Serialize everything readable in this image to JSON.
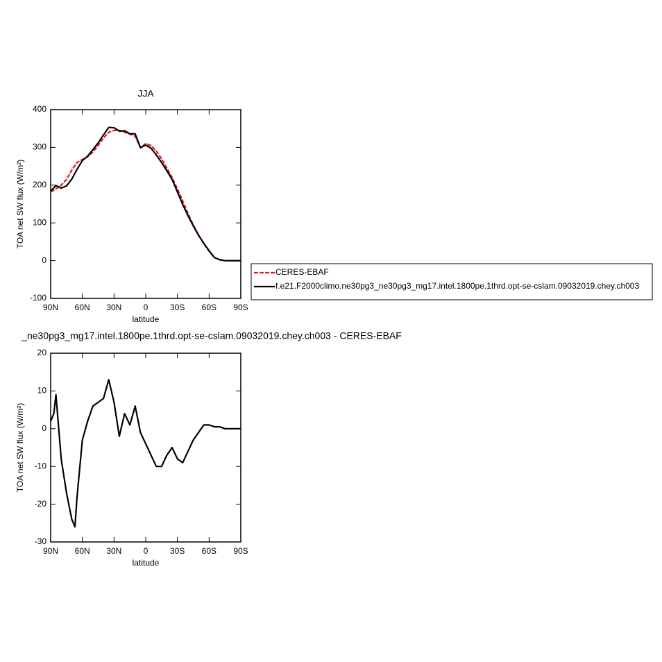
{
  "chart_data": [
    {
      "type": "line",
      "title": "JJA",
      "x_label": "latitude",
      "y_label": "TOA net SW flux (W/m²)",
      "x": [
        90,
        85,
        80,
        75,
        70,
        65,
        60,
        55,
        50,
        45,
        40,
        35,
        30,
        25,
        20,
        15,
        10,
        5,
        0,
        -5,
        -10,
        -15,
        -20,
        -25,
        -30,
        -35,
        -40,
        -45,
        -50,
        -55,
        -60,
        -65,
        -70,
        -75,
        -80,
        -85,
        -90
      ],
      "series": [
        {
          "name": "CERES-EBAF",
          "color": "#e31a1c",
          "dashed": true,
          "values": [
            182,
            190,
            200,
            215,
            240,
            260,
            268,
            275,
            288,
            305,
            325,
            340,
            345,
            345,
            340,
            335,
            330,
            300,
            310,
            305,
            290,
            270,
            245,
            220,
            190,
            158,
            125,
            95,
            68,
            45,
            25,
            8,
            2,
            0,
            0,
            0,
            0
          ]
        },
        {
          "name": "f.e21.F2000climo.ne30pg3_ne30pg3_mg17.intel.1800pe.1thrd.opt-se-cslam.09032019.chey.ch003",
          "color": "#000000",
          "dashed": false,
          "values": [
            184,
            199,
            192,
            198,
            216,
            242,
            265,
            277,
            294,
            312,
            333,
            353,
            352,
            343,
            344,
            336,
            336,
            299,
            306,
            298,
            280,
            260,
            238,
            215,
            182,
            149,
            119,
            92,
            67,
            46,
            26,
            8.5,
            2.5,
            0,
            0,
            0,
            0
          ]
        }
      ],
      "xlim": [
        90,
        -90
      ],
      "xticks": [
        {
          "value": 90,
          "label": "90N"
        },
        {
          "value": 60,
          "label": "60N"
        },
        {
          "value": 30,
          "label": "30N"
        },
        0,
        {
          "value": -30,
          "label": "30S"
        },
        {
          "value": -60,
          "label": "60S"
        },
        {
          "value": -90,
          "label": "90S"
        }
      ],
      "ylim": [
        -100,
        400
      ],
      "yticks": [
        -100,
        0,
        100,
        200,
        300,
        400
      ],
      "legend": "right"
    },
    {
      "type": "line",
      "title": "_ne30pg3_mg17.intel.1800pe.1thrd.opt-se-cslam.09032019.chey.ch003 - CERES-EBAF",
      "x_label": "latitude",
      "y_label": "TOA net SW flux (W/m²)",
      "x": [
        90,
        87,
        85,
        80,
        75,
        70,
        67,
        65,
        60,
        55,
        50,
        45,
        40,
        35,
        30,
        25,
        20,
        15,
        10,
        5,
        0,
        -5,
        -10,
        -15,
        -20,
        -25,
        -30,
        -35,
        -40,
        -45,
        -50,
        -55,
        -60,
        -65,
        -70,
        -75,
        -80,
        -85,
        -90
      ],
      "values": [
        2,
        4,
        9,
        -8,
        -17,
        -24,
        -26,
        -18,
        -3,
        2,
        6,
        7,
        8,
        13,
        7,
        -2,
        4,
        1,
        6,
        -1,
        -4,
        -7,
        -10,
        -10,
        -7,
        -5,
        -8,
        -9,
        -6,
        -3,
        -1,
        1,
        1,
        0.5,
        0.5,
        0,
        0,
        0,
        0
      ],
      "color": "#000000",
      "xlim": [
        90,
        -90
      ],
      "xticks": [
        {
          "value": 90,
          "label": "90N"
        },
        {
          "value": 60,
          "label": "60N"
        },
        {
          "value": 30,
          "label": "30N"
        },
        0,
        {
          "value": -30,
          "label": "30S"
        },
        {
          "value": -60,
          "label": "60S"
        },
        {
          "value": -90,
          "label": "90S"
        }
      ],
      "ylim": [
        -30,
        20
      ],
      "yticks": [
        -30,
        -20,
        -10,
        0,
        10,
        20
      ]
    }
  ]
}
